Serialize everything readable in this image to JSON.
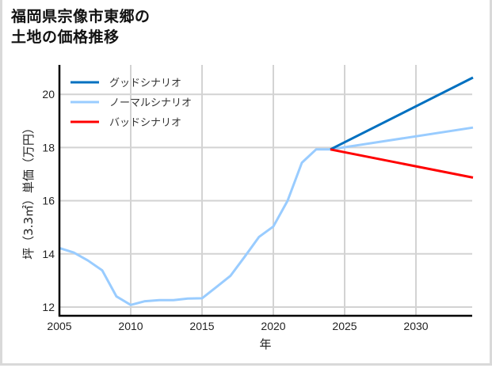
{
  "title": {
    "line1": "福岡県宗像市東郷の",
    "line2": "土地の価格推移"
  },
  "colors": {
    "good": "#0070c0",
    "normal": "#99ccff",
    "bad": "#ff0000",
    "grid": "#d3d3d3",
    "axis": "#000000"
  },
  "chart_data": {
    "type": "line",
    "title": "福岡県宗像市東郷の土地の価格推移",
    "xlabel": "年",
    "ylabel": "坪（3.3㎡）単価（万円）",
    "xlim": [
      2005,
      2034
    ],
    "ylim": [
      11.7,
      21.1
    ],
    "xticks": [
      2005,
      2010,
      2015,
      2020,
      2025,
      2030
    ],
    "yticks": [
      12,
      14,
      16,
      18,
      20
    ],
    "grid": true,
    "legend_position": "upper left",
    "series": [
      {
        "name": "グッドシナリオ",
        "color": "#0070c0",
        "x": [
          2024,
          2034
        ],
        "y": [
          17.93,
          20.63
        ]
      },
      {
        "name": "ノーマルシナリオ",
        "color": "#99ccff",
        "x": [
          2005,
          2006,
          2007,
          2008,
          2009,
          2010,
          2011,
          2012,
          2013,
          2014,
          2015,
          2016,
          2017,
          2018,
          2019,
          2020,
          2021,
          2022,
          2023,
          2024,
          2034
        ],
        "y": [
          14.22,
          14.05,
          13.75,
          13.38,
          12.4,
          12.08,
          12.22,
          12.26,
          12.26,
          12.32,
          12.33,
          12.75,
          13.18,
          13.9,
          14.64,
          15.03,
          16.0,
          17.43,
          17.93,
          17.93,
          18.75
        ]
      },
      {
        "name": "バッドシナリオ",
        "color": "#ff0000",
        "x": [
          2024,
          2034
        ],
        "y": [
          17.93,
          16.87
        ]
      }
    ]
  }
}
